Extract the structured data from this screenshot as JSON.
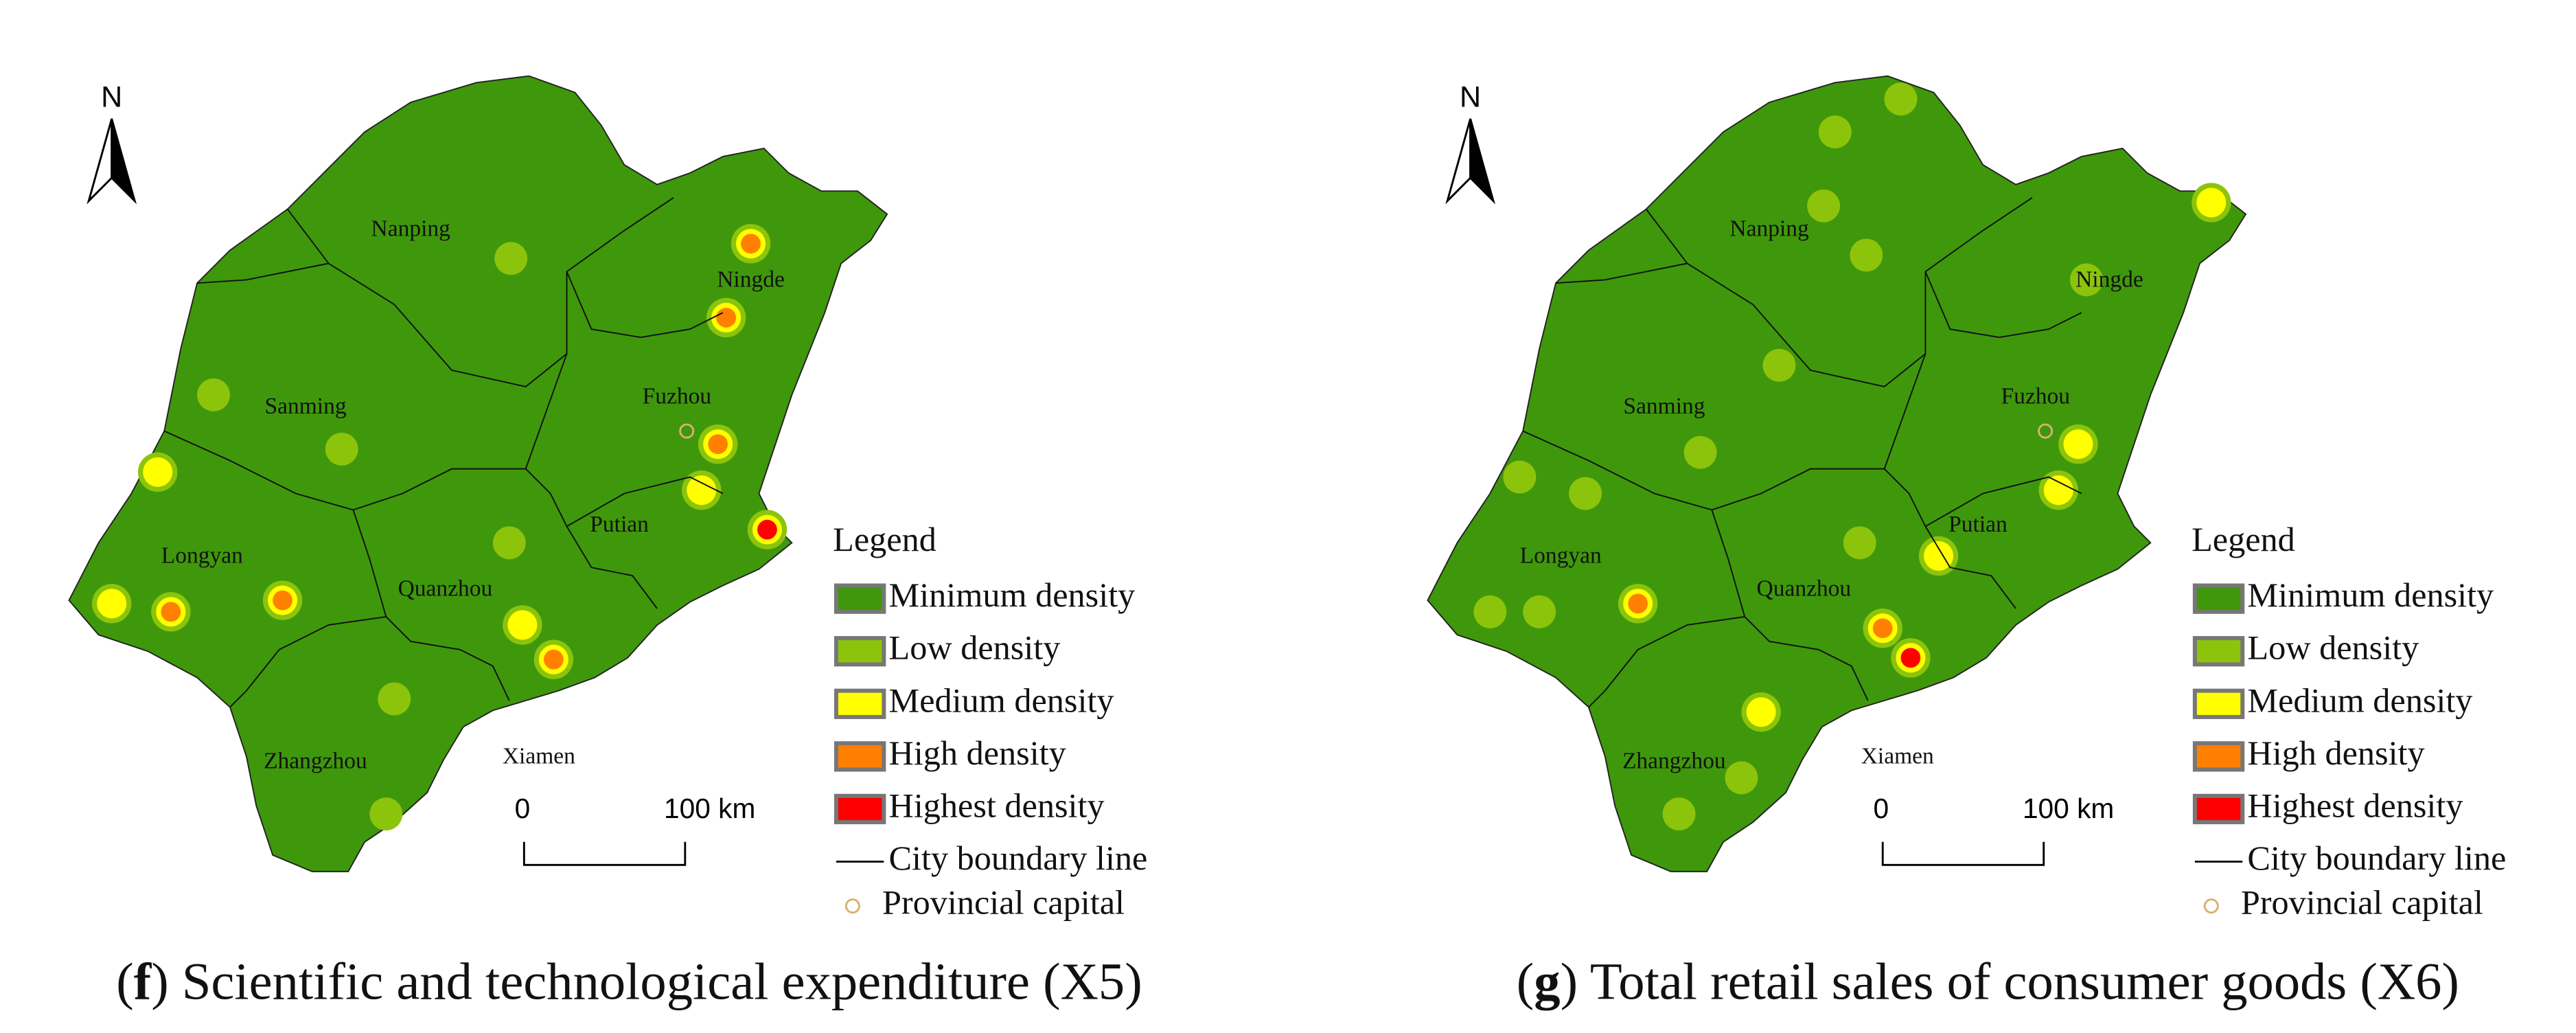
{
  "panels": [
    {
      "north": "N",
      "cities": [
        "Nanping",
        "Ningde",
        "Sanming",
        "Fuzhou",
        "Putian",
        "Longyan",
        "Quanzhou",
        "Zhangzhou",
        "Xiamen"
      ],
      "legend": {
        "title": "Legend",
        "items": [
          {
            "label": "Minimum density",
            "color": "#3f980b"
          },
          {
            "label": "Low density",
            "color": "#8cc40c"
          },
          {
            "label": "Medium density",
            "color": "#ffff00"
          },
          {
            "label": "High density",
            "color": "#ff8000"
          },
          {
            "label": "Highest density",
            "color": "#ff0000"
          }
        ],
        "boundary": "City boundary line",
        "capital": "Provincial capital"
      },
      "scale": {
        "start": "0",
        "end": "100 km"
      },
      "caption": [
        "(",
        "f",
        ") Scientific and technological expenditure (X5)"
      ]
    },
    {
      "north": "N",
      "cities": [
        "Nanping",
        "Ningde",
        "Sanming",
        "Fuzhou",
        "Putian",
        "Longyan",
        "Quanzhou",
        "Zhangzhou",
        "Xiamen"
      ],
      "legend": {
        "title": "Legend",
        "items": [
          {
            "label": "Minimum density",
            "color": "#3f980b"
          },
          {
            "label": "Low density",
            "color": "#8cc40c"
          },
          {
            "label": "Medium density",
            "color": "#ffff00"
          },
          {
            "label": "High density",
            "color": "#ff8000"
          },
          {
            "label": "Highest density",
            "color": "#ff0000"
          }
        ],
        "boundary": "City boundary line",
        "capital": "Provincial capital"
      },
      "scale": {
        "start": "0",
        "end": "100 km"
      },
      "caption": [
        "(",
        "g",
        ") Total retail sales of consumer goods (X6)"
      ]
    }
  ]
}
